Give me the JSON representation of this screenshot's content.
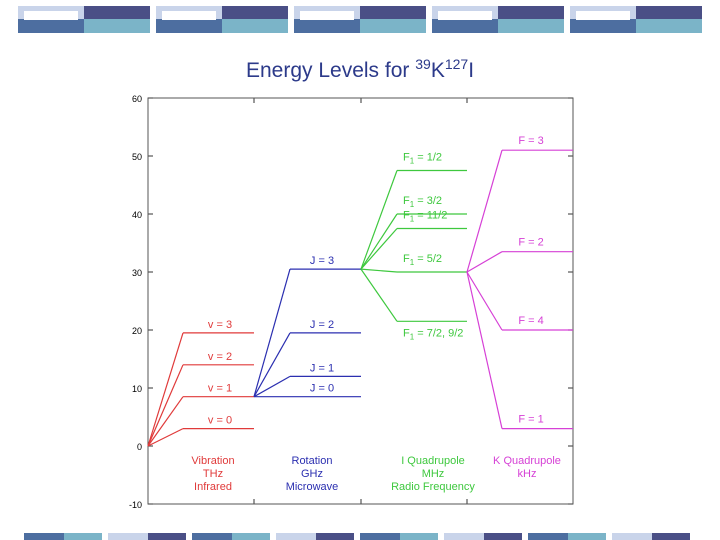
{
  "title": {
    "pre": "Energy Levels for ",
    "iso1": "39",
    "el1": "K",
    "iso2": "127",
    "el2": "I"
  },
  "axis": {
    "ymin": -10,
    "ymax": 60,
    "ticks": [
      "60",
      "50",
      "40",
      "30",
      "20",
      "10",
      "0",
      "-10"
    ]
  },
  "colors": {
    "vibration": "#e03a3a",
    "rotation": "#2b2fb0",
    "i_quad": "#3ec83e",
    "k_quad": "#d640d6",
    "title": "#2c3a8a"
  },
  "vibration": {
    "levels": [
      {
        "label": "v = 3",
        "energy": 19.5
      },
      {
        "label": "v = 2",
        "energy": 14
      },
      {
        "label": "v = 1",
        "energy": 8.5
      },
      {
        "label": "v = 0",
        "energy": 3
      }
    ],
    "caption": [
      "Vibration",
      "THz",
      "Infrared"
    ]
  },
  "rotation": {
    "levels": [
      {
        "label": "J = 3",
        "energy": 30.5
      },
      {
        "label": "J = 2",
        "energy": 19.5
      },
      {
        "label": "J = 1",
        "energy": 12
      },
      {
        "label": "J = 0",
        "energy": 8.5
      }
    ],
    "caption": [
      "Rotation",
      "GHz",
      "Microwave"
    ]
  },
  "i_quadrupole": {
    "levels": [
      {
        "label_main": "F",
        "label_sub": "1",
        "label_rest": " = 1/2",
        "energy": 47.5
      },
      {
        "label_main": "F",
        "label_sub": "1",
        "label_rest": " = 3/2",
        "energy": 40
      },
      {
        "label_main": "F",
        "label_sub": "1",
        "label_rest": " = 11/2",
        "energy": 37.5
      },
      {
        "label_main": "F",
        "label_sub": "1",
        "label_rest": " = 5/2",
        "energy": 30
      },
      {
        "label_main": "F",
        "label_sub": "1",
        "label_rest": " = 7/2, 9/2",
        "energy": 21.5
      }
    ],
    "caption": [
      "I Quadrupole",
      "MHz",
      "Radio Frequency"
    ]
  },
  "k_quadrupole": {
    "levels": [
      {
        "label": "F = 3",
        "energy": 51
      },
      {
        "label": "F = 2",
        "energy": 33.5
      },
      {
        "label": "F = 4",
        "energy": 20
      },
      {
        "label": "F = 1",
        "energy": 3
      }
    ],
    "caption": [
      "K Quadrupole",
      "kHz"
    ]
  }
}
